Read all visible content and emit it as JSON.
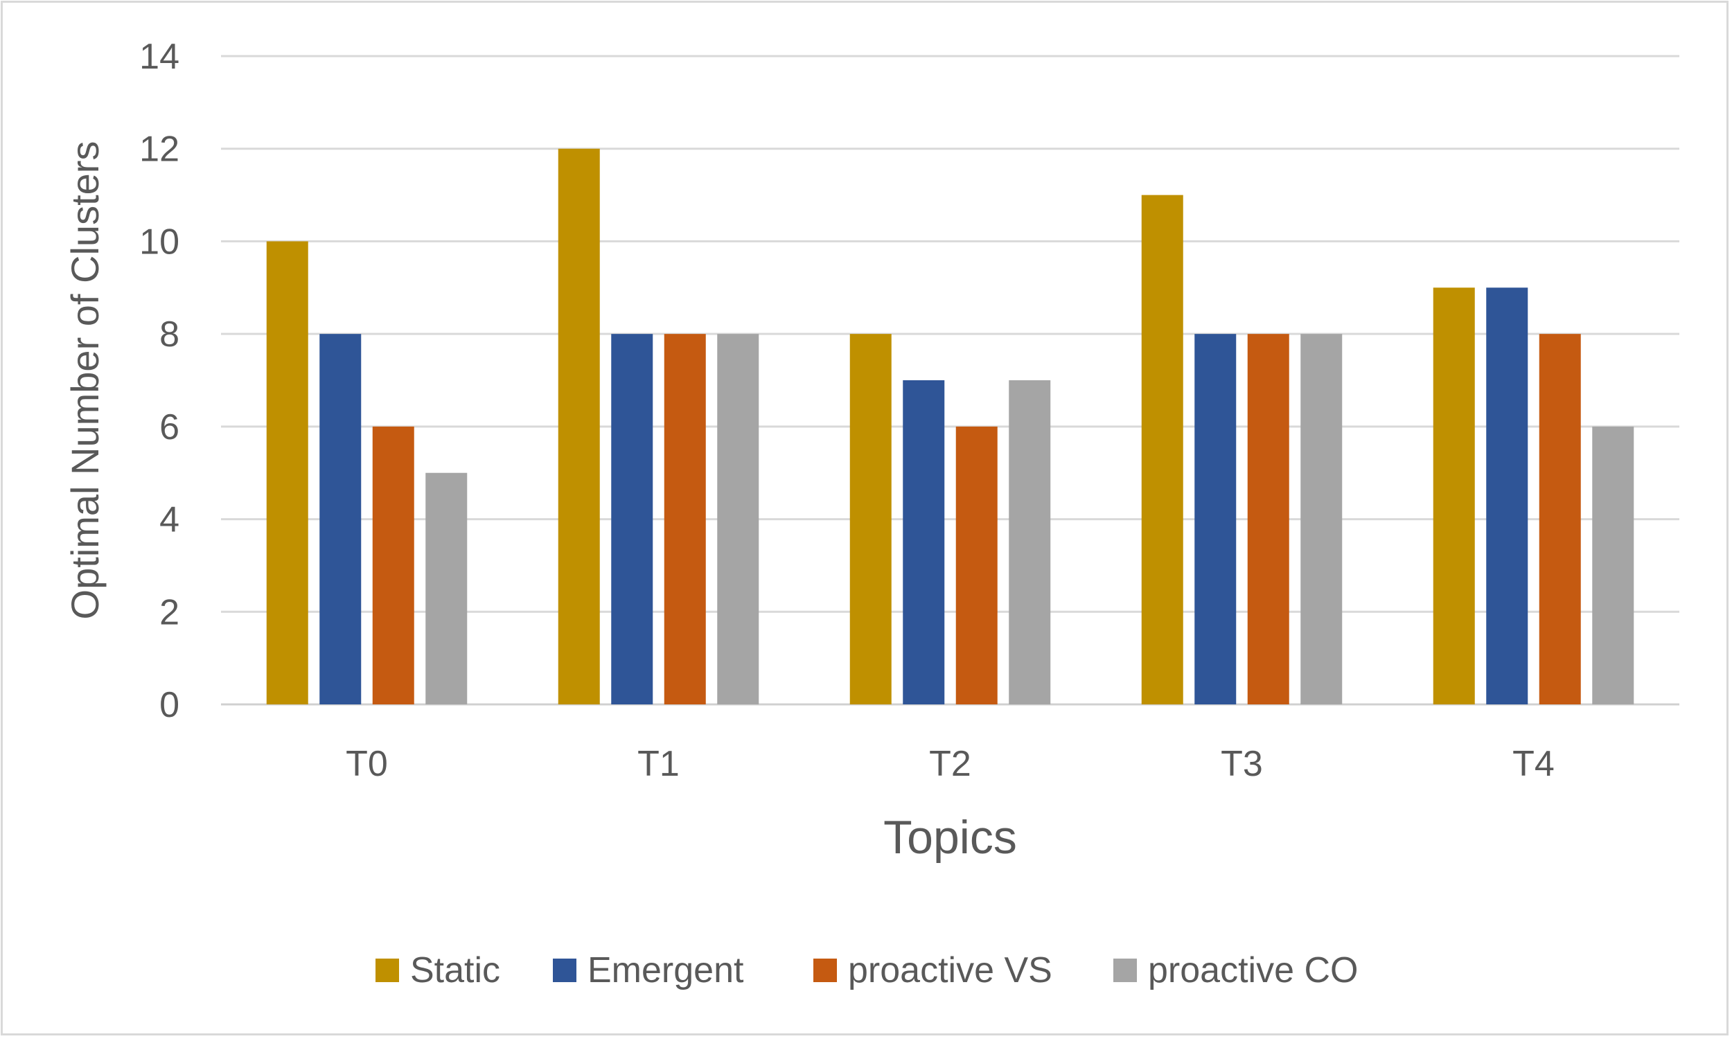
{
  "chart_data": {
    "type": "bar",
    "title": "",
    "xlabel": "Topics",
    "ylabel": "Optimal Number of Clusters",
    "categories": [
      "T0",
      "T1",
      "T2",
      "T3",
      "T4"
    ],
    "ylim": [
      0,
      14
    ],
    "yticks": [
      0,
      2,
      4,
      6,
      8,
      10,
      12,
      14
    ],
    "grid": true,
    "legend_position": "bottom",
    "series": [
      {
        "name": "Static",
        "color": "#BF9000",
        "values": [
          10,
          12,
          8,
          11,
          9
        ]
      },
      {
        "name": "Emergent",
        "color": "#2F5597",
        "values": [
          8,
          8,
          7,
          8,
          9
        ]
      },
      {
        "name": "proactive VS",
        "color": "#C55A11",
        "values": [
          6,
          8,
          6,
          8,
          8
        ]
      },
      {
        "name": "proactive CO",
        "color": "#A5A5A5",
        "values": [
          5,
          8,
          7,
          8,
          6
        ]
      }
    ]
  }
}
